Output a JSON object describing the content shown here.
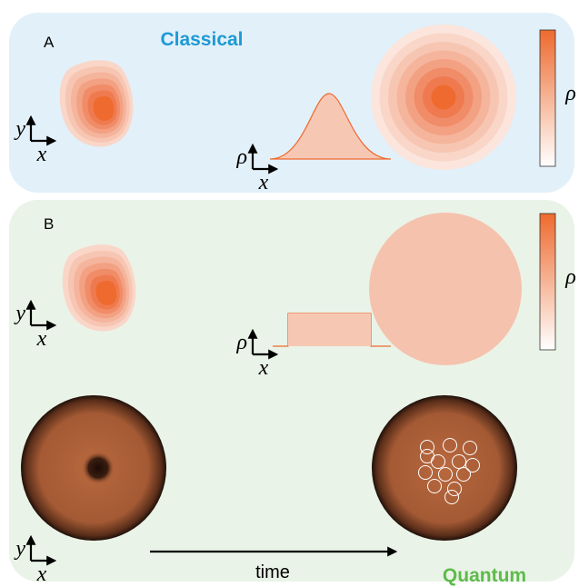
{
  "panels": [
    {
      "label": "A",
      "title": "Classical",
      "colorbar_label": "ρ",
      "map_axes": {
        "y": "y",
        "x": "x"
      },
      "profile_axes": {
        "y": "ρ",
        "x": "x"
      }
    },
    {
      "label": "B",
      "title": "Quantum",
      "colorbar_label": "ρ",
      "map_axes": {
        "y": "y",
        "x": "x"
      },
      "profile_axes": {
        "y": "ρ",
        "x": "x"
      },
      "image_axes": {
        "y": "y",
        "x": "x"
      },
      "arrow_label": "time"
    }
  ]
}
